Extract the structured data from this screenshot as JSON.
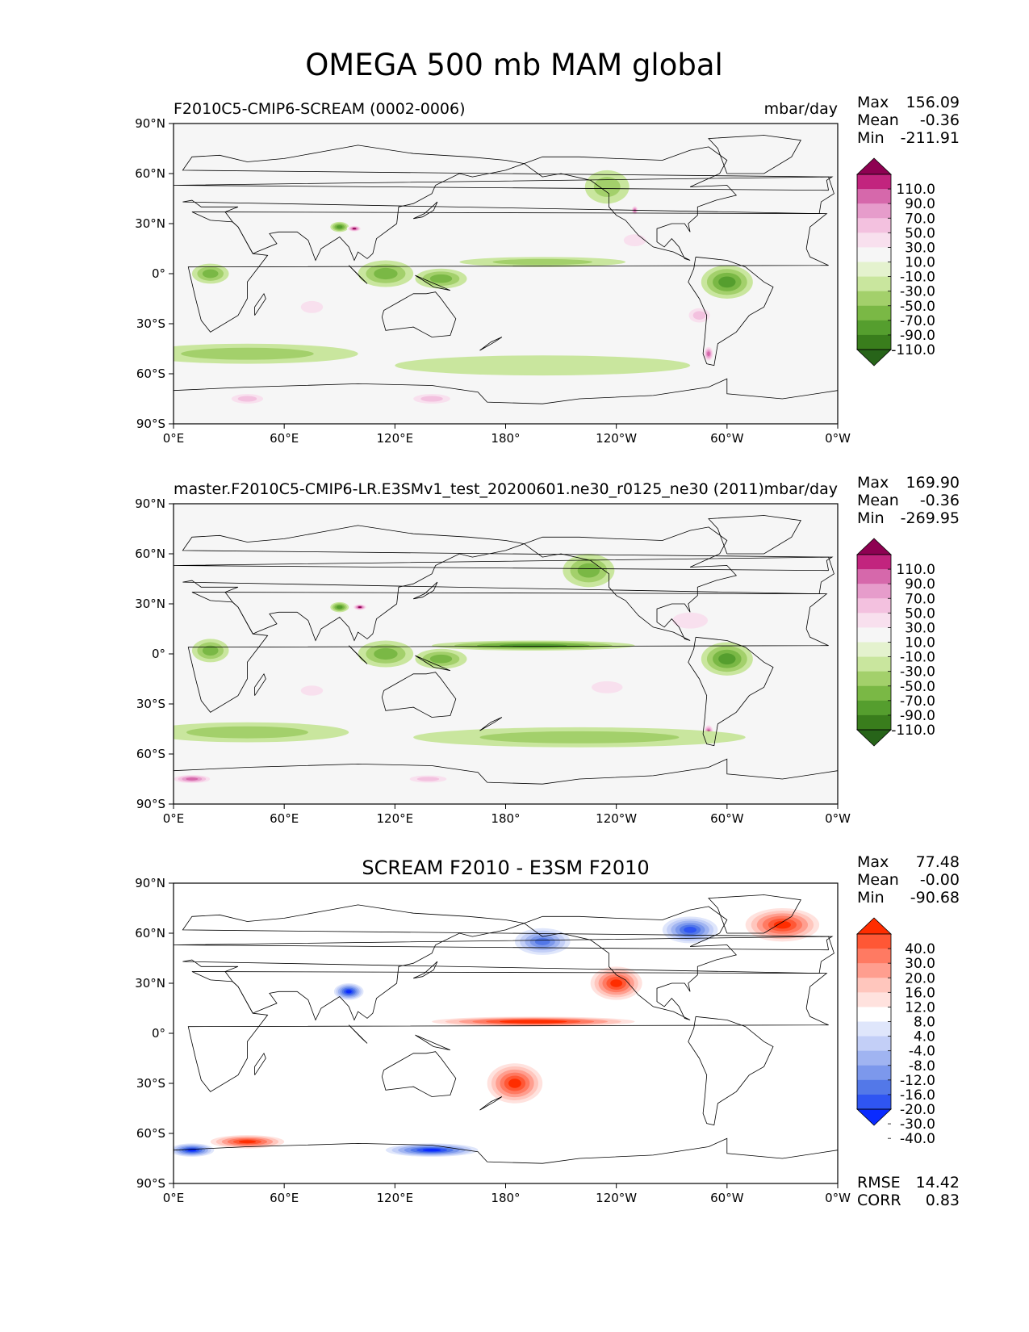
{
  "figure": {
    "title": "OMEGA 500 mb MAM global"
  },
  "axes": {
    "xticks": [
      "0°E",
      "60°E",
      "120°E",
      "180°",
      "120°W",
      "60°W",
      "0°W"
    ],
    "yticks": [
      "90°N",
      "60°N",
      "30°N",
      "0°",
      "30°S",
      "60°S",
      "90°S"
    ]
  },
  "colors": {
    "pink_green": [
      "#276419",
      "#397d1c",
      "#559e2e",
      "#7ab845",
      "#a3d06b",
      "#c9e69e",
      "#e4f2ce",
      "#f6f6f6",
      "#f8e0ee",
      "#f3c1df",
      "#e69ccb",
      "#d668ab",
      "#c2247e",
      "#8e0152"
    ],
    "blue_red": [
      "#0a2bff",
      "#2f55f2",
      "#5378e8",
      "#7c98ec",
      "#a0b4f1",
      "#c3cff7",
      "#dfe6fb",
      "#ffffff",
      "#ffe2de",
      "#ffc6bd",
      "#ff9e8f",
      "#ff7a62",
      "#ff5735",
      "#ff2d00"
    ],
    "coast": "#000000"
  },
  "panels": [
    {
      "title_left": "F2010C5-CMIP6-SCREAM (0002-0006)",
      "title_right": "mbar/day",
      "title_center": "",
      "stats": [
        {
          "label": "Max",
          "value": "156.09"
        },
        {
          "label": "Mean",
          "value": "-0.36"
        },
        {
          "label": "Min",
          "value": "-211.91"
        }
      ],
      "levels": [
        "110.0",
        "90.0",
        "70.0",
        "50.0",
        "30.0",
        "10.0",
        "-10.0",
        "-30.0",
        "-50.0",
        "-70.0",
        "-90.0",
        "-110.0"
      ],
      "footer": []
    },
    {
      "title_left": "master.F2010C5-CMIP6-LR.E3SMv1_test_20200601.ne30_r0125_ne30 (2011)",
      "title_right": "mbar/day",
      "title_center": "",
      "stats": [
        {
          "label": "Max",
          "value": "169.90"
        },
        {
          "label": "Mean",
          "value": "-0.36"
        },
        {
          "label": "Min",
          "value": "-269.95"
        }
      ],
      "levels": [
        "110.0",
        "90.0",
        "70.0",
        "50.0",
        "30.0",
        "10.0",
        "-10.0",
        "-30.0",
        "-50.0",
        "-70.0",
        "-90.0",
        "-110.0"
      ],
      "footer": []
    },
    {
      "title_left": "",
      "title_right": "",
      "title_center": "SCREAM F2010 - E3SM F2010",
      "stats": [
        {
          "label": "Max",
          "value": "77.48"
        },
        {
          "label": "Mean",
          "value": "-0.00"
        },
        {
          "label": "Min",
          "value": "-90.68"
        }
      ],
      "levels": [
        "40.0",
        "30.0",
        "20.0",
        "16.0",
        "12.0",
        "8.0",
        "4.0",
        "-4.0",
        "-8.0",
        "-12.0",
        "-16.0",
        "-20.0",
        "-30.0",
        "-40.0"
      ],
      "footer": [
        {
          "label": "RMSE",
          "value": "14.42"
        },
        {
          "label": "CORR",
          "value": "0.83"
        }
      ]
    }
  ],
  "chart_data": [
    {
      "type": "heatmap",
      "title": "F2010C5-CMIP6-SCREAM (0002-0006)",
      "units": "mbar/day",
      "xlim": [
        0,
        360
      ],
      "ylim": [
        -90,
        90
      ],
      "contour_levels": [
        -110,
        -90,
        -70,
        -50,
        -30,
        -10,
        10,
        30,
        50,
        70,
        90,
        110
      ],
      "colorbar_extend": "both",
      "stats": {
        "max": 156.09,
        "mean": -0.36,
        "min": -211.91
      },
      "features": [
        {
          "lon": 20,
          "lat": 0,
          "value": -60,
          "w": 10,
          "h": 6
        },
        {
          "lon": 115,
          "lat": 0,
          "value": -60,
          "w": 15,
          "h": 8
        },
        {
          "lon": 145,
          "lat": -3,
          "value": -55,
          "w": 14,
          "h": 6
        },
        {
          "lon": 300,
          "lat": -5,
          "value": -75,
          "w": 14,
          "h": 10
        },
        {
          "lon": 290,
          "lat": -48,
          "value": 100,
          "w": 3,
          "h": 5
        },
        {
          "lon": 90,
          "lat": 28,
          "value": -70,
          "w": 5,
          "h": 3
        },
        {
          "lon": 98,
          "lat": 27,
          "value": 110,
          "w": 4,
          "h": 2
        },
        {
          "lon": 200,
          "lat": 7,
          "value": -35,
          "w": 45,
          "h": 3
        },
        {
          "lon": 250,
          "lat": 20,
          "value": 45,
          "w": 10,
          "h": 6
        },
        {
          "lon": 285,
          "lat": -25,
          "value": 50,
          "w": 8,
          "h": 6
        },
        {
          "lon": 75,
          "lat": -20,
          "value": 40,
          "w": 10,
          "h": 6
        },
        {
          "lon": 40,
          "lat": -48,
          "value": -30,
          "w": 60,
          "h": 6
        },
        {
          "lon": 200,
          "lat": -55,
          "value": -25,
          "w": 80,
          "h": 6
        },
        {
          "lon": 40,
          "lat": -75,
          "value": 50,
          "w": 12,
          "h": 4
        },
        {
          "lon": 140,
          "lat": -75,
          "value": 55,
          "w": 14,
          "h": 4
        },
        {
          "lon": 235,
          "lat": 52,
          "value": -40,
          "w": 12,
          "h": 10
        },
        {
          "lon": 250,
          "lat": 38,
          "value": 90,
          "w": 2,
          "h": 3
        }
      ]
    },
    {
      "type": "heatmap",
      "title": "master.F2010C5-CMIP6-LR.E3SMv1_test_20200601.ne30_r0125_ne30 (2011)",
      "units": "mbar/day",
      "xlim": [
        0,
        360
      ],
      "ylim": [
        -90,
        90
      ],
      "contour_levels": [
        -110,
        -90,
        -70,
        -50,
        -30,
        -10,
        10,
        30,
        50,
        70,
        90,
        110
      ],
      "colorbar_extend": "both",
      "stats": {
        "max": 169.9,
        "mean": -0.36,
        "min": -269.95
      },
      "features": [
        {
          "lon": 20,
          "lat": 2,
          "value": -60,
          "w": 10,
          "h": 7
        },
        {
          "lon": 115,
          "lat": 0,
          "value": -60,
          "w": 15,
          "h": 8
        },
        {
          "lon": 145,
          "lat": -3,
          "value": -65,
          "w": 14,
          "h": 6
        },
        {
          "lon": 195,
          "lat": 5,
          "value": -75,
          "w": 55,
          "h": 3
        },
        {
          "lon": 300,
          "lat": -3,
          "value": -70,
          "w": 14,
          "h": 10
        },
        {
          "lon": 290,
          "lat": -47,
          "value": 110,
          "w": 3,
          "h": 5
        },
        {
          "lon": 90,
          "lat": 28,
          "value": -80,
          "w": 5,
          "h": 3
        },
        {
          "lon": 101,
          "lat": 28,
          "value": 120,
          "w": 4,
          "h": 2
        },
        {
          "lon": 225,
          "lat": 50,
          "value": -55,
          "w": 14,
          "h": 10
        },
        {
          "lon": 280,
          "lat": 20,
          "value": 35,
          "w": 16,
          "h": 8
        },
        {
          "lon": 75,
          "lat": -22,
          "value": 45,
          "w": 10,
          "h": 5
        },
        {
          "lon": 235,
          "lat": -20,
          "value": 45,
          "w": 14,
          "h": 6
        },
        {
          "lon": 40,
          "lat": -47,
          "value": -40,
          "w": 55,
          "h": 6
        },
        {
          "lon": 220,
          "lat": -50,
          "value": -30,
          "w": 90,
          "h": 6
        },
        {
          "lon": 10,
          "lat": -75,
          "value": 90,
          "w": 12,
          "h": 3
        },
        {
          "lon": 138,
          "lat": -75,
          "value": 60,
          "w": 14,
          "h": 3
        }
      ]
    },
    {
      "type": "heatmap",
      "title": "SCREAM F2010 - E3SM F2010",
      "units": "mbar/day",
      "xlim": [
        0,
        360
      ],
      "ylim": [
        -90,
        90
      ],
      "contour_levels": [
        -40,
        -30,
        -20,
        -16,
        -12,
        -8,
        -4,
        4,
        8,
        12,
        16,
        20,
        30,
        40
      ],
      "colorbar_extend": "both",
      "stats": {
        "max": 77.48,
        "mean": -0.0,
        "min": -90.68,
        "rmse": 14.42,
        "corr": 0.83
      },
      "features": [
        {
          "lon": 195,
          "lat": 7,
          "value": 40,
          "w": 55,
          "h": 3
        },
        {
          "lon": 10,
          "lat": -70,
          "value": -45,
          "w": 12,
          "h": 4
        },
        {
          "lon": 140,
          "lat": -70,
          "value": -40,
          "w": 25,
          "h": 4
        },
        {
          "lon": 40,
          "lat": -65,
          "value": 35,
          "w": 20,
          "h": 4
        },
        {
          "lon": 330,
          "lat": 65,
          "value": 35,
          "w": 20,
          "h": 10
        },
        {
          "lon": 280,
          "lat": 62,
          "value": -30,
          "w": 15,
          "h": 8
        },
        {
          "lon": 185,
          "lat": -30,
          "value": 35,
          "w": 15,
          "h": 12
        },
        {
          "lon": 95,
          "lat": 25,
          "value": -40,
          "w": 8,
          "h": 5
        },
        {
          "lon": 240,
          "lat": 30,
          "value": 30,
          "w": 14,
          "h": 10
        },
        {
          "lon": 200,
          "lat": 55,
          "value": -25,
          "w": 15,
          "h": 8
        }
      ]
    }
  ]
}
